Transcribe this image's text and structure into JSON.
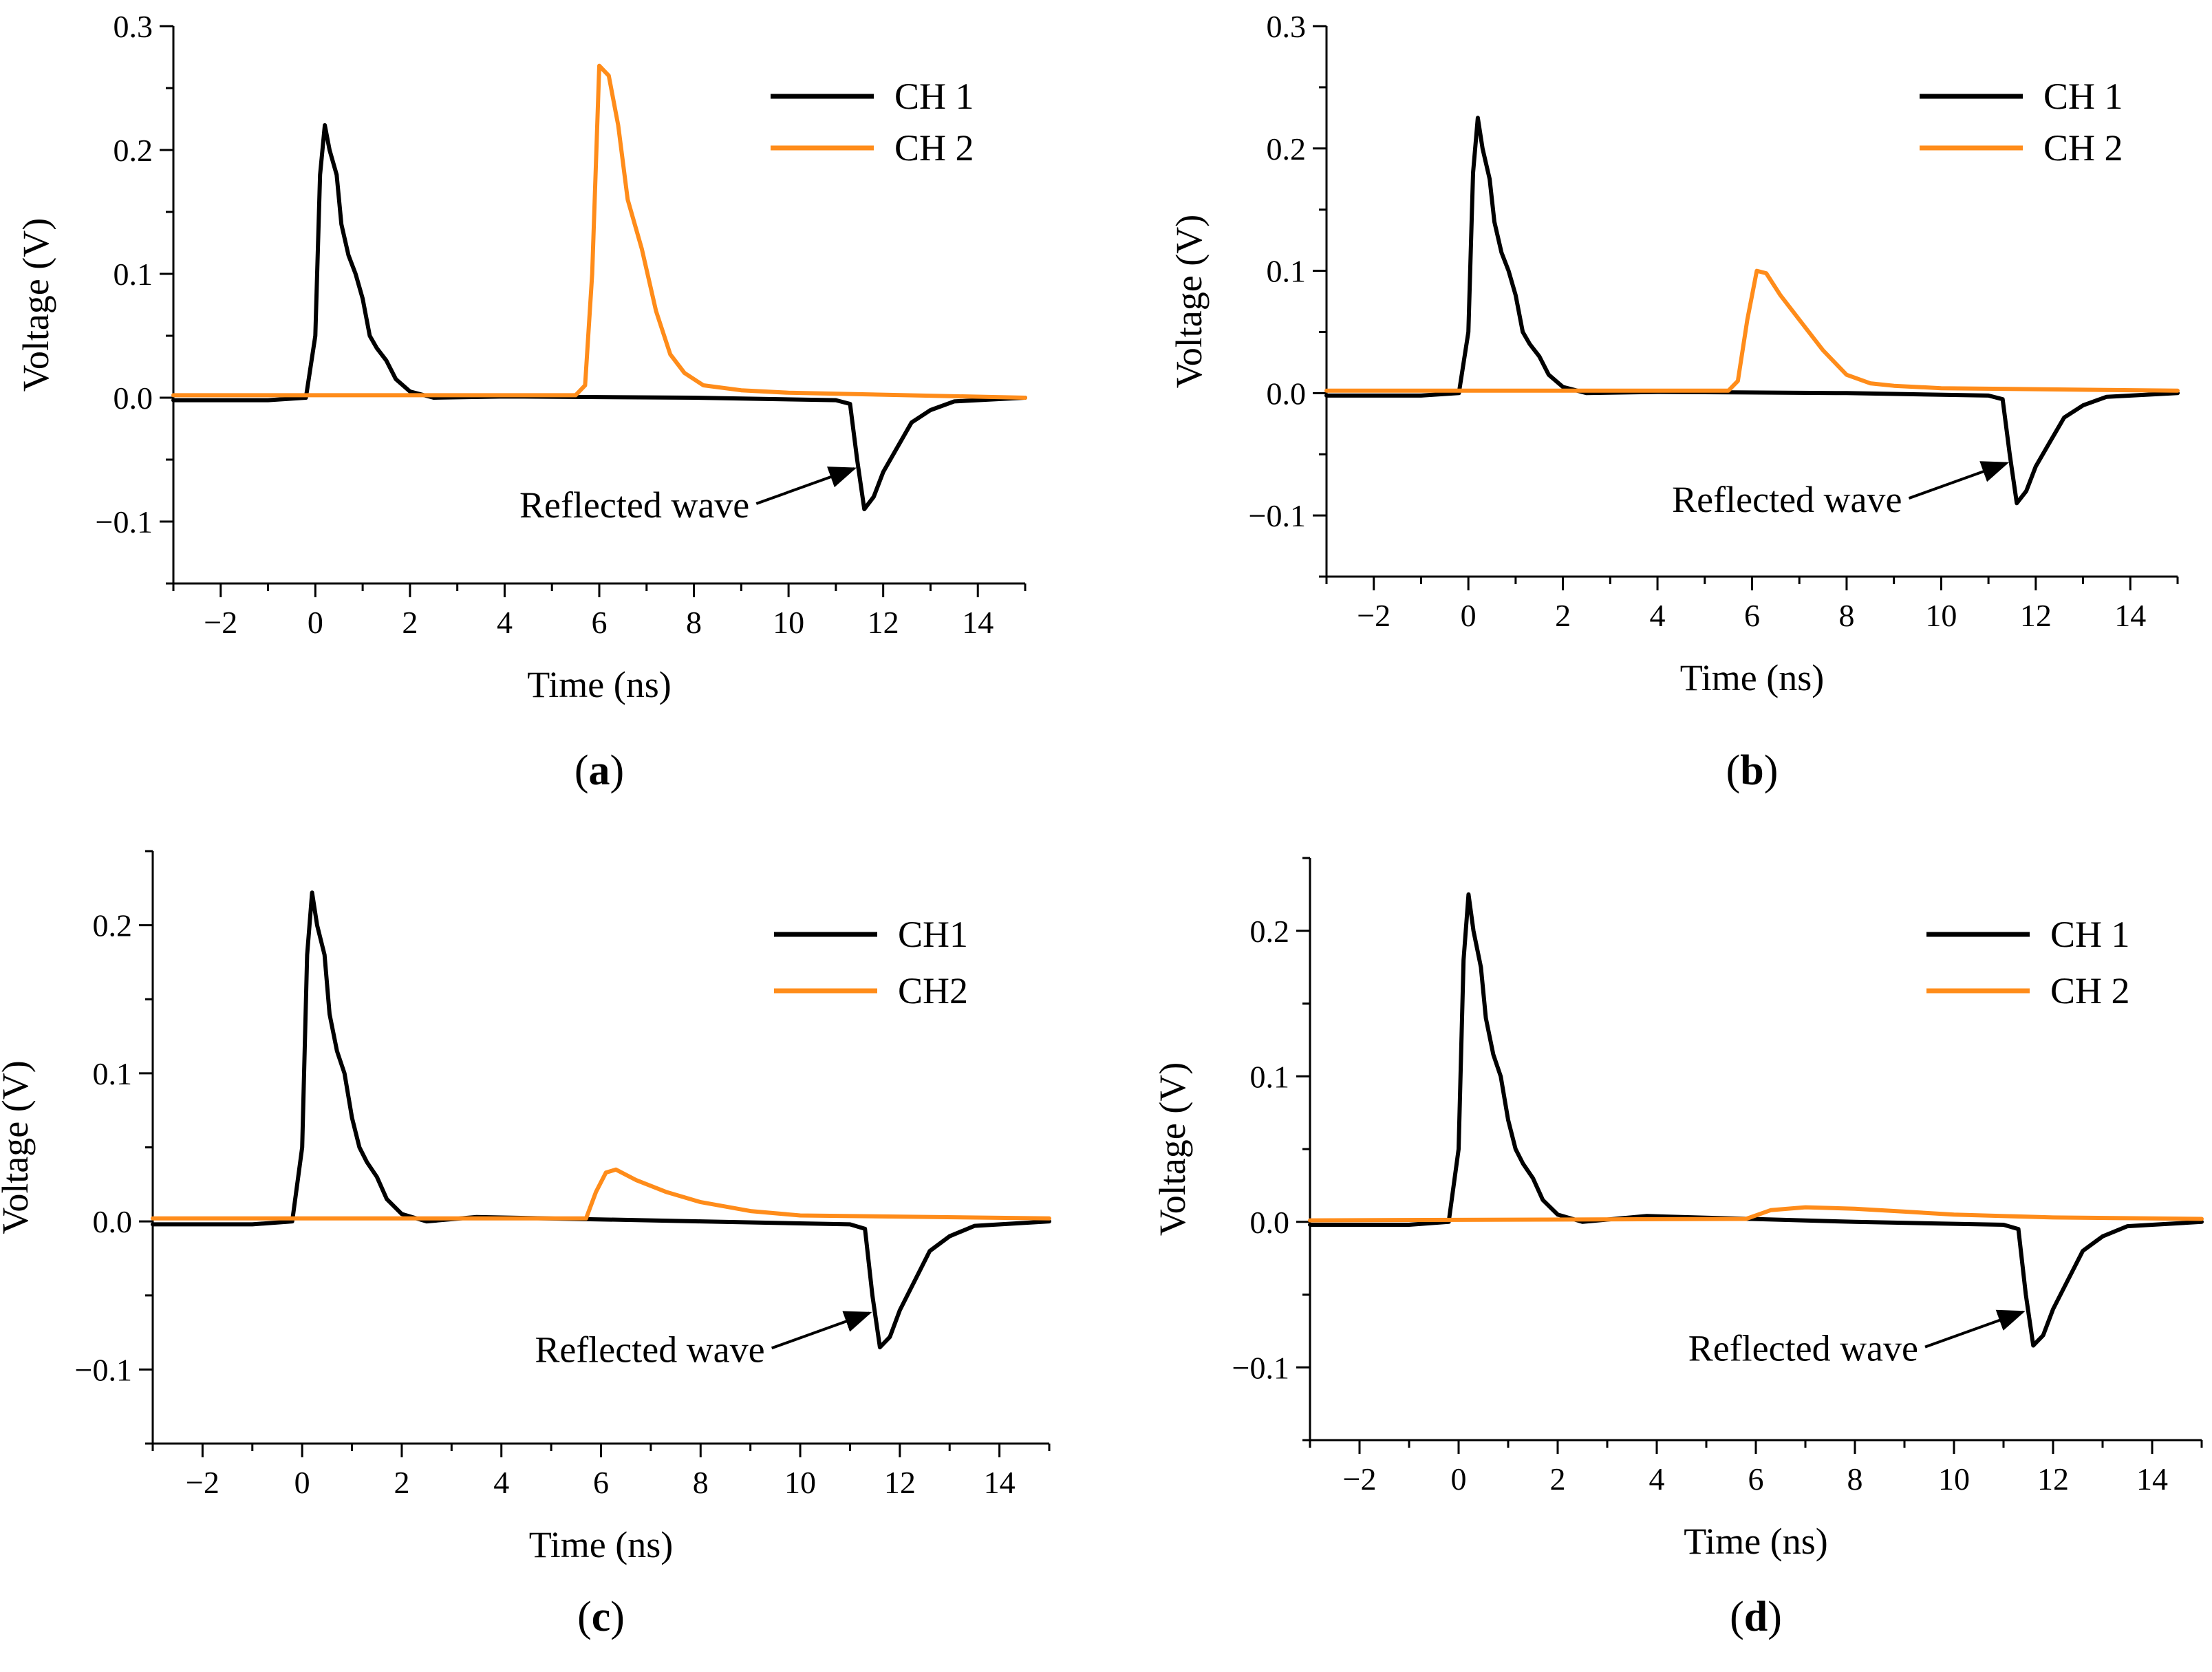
{
  "figure": {
    "description_labels": [
      "a",
      "b",
      "c",
      "d"
    ]
  },
  "colors": {
    "ch1": "#000000",
    "ch2": "#FF8C1A",
    "axis": "#000000"
  },
  "chart_data": [
    {
      "type": "line",
      "panel_label": "a",
      "xlabel": "Time (ns)",
      "ylabel": "Voltage (V)",
      "xlim": [
        -3,
        15
      ],
      "ylim": [
        -0.15,
        0.3
      ],
      "xticks": [
        -2,
        0,
        2,
        4,
        6,
        8,
        10,
        12,
        14
      ],
      "xtick_labels": [
        "−2",
        "0",
        "2",
        "4",
        "6",
        "8",
        "10",
        "12",
        "14"
      ],
      "yticks": [
        -0.1,
        0.0,
        0.1,
        0.2,
        0.3
      ],
      "ytick_labels": [
        "−0.1",
        "0.0",
        "0.1",
        "0.2",
        "0.3"
      ],
      "legend": [
        "CH 1",
        "CH 2"
      ],
      "annotation": {
        "text": "Reflected wave",
        "arrow_to": [
          11.5,
          -0.055
        ]
      },
      "series": [
        {
          "name": "CH 1",
          "color": "#000000",
          "points": [
            [
              -3,
              -0.002
            ],
            [
              -1,
              -0.002
            ],
            [
              -0.2,
              0.0
            ],
            [
              0.0,
              0.05
            ],
            [
              0.1,
              0.18
            ],
            [
              0.2,
              0.22
            ],
            [
              0.3,
              0.2
            ],
            [
              0.45,
              0.18
            ],
            [
              0.55,
              0.14
            ],
            [
              0.7,
              0.115
            ],
            [
              0.85,
              0.1
            ],
            [
              1.0,
              0.08
            ],
            [
              1.15,
              0.05
            ],
            [
              1.3,
              0.04
            ],
            [
              1.5,
              0.03
            ],
            [
              1.7,
              0.015
            ],
            [
              2.0,
              0.005
            ],
            [
              2.5,
              0.0
            ],
            [
              4,
              0.001
            ],
            [
              8,
              0.0
            ],
            [
              11.0,
              -0.002
            ],
            [
              11.3,
              -0.005
            ],
            [
              11.45,
              -0.05
            ],
            [
              11.6,
              -0.09
            ],
            [
              11.8,
              -0.08
            ],
            [
              12.0,
              -0.06
            ],
            [
              12.3,
              -0.04
            ],
            [
              12.6,
              -0.02
            ],
            [
              13.0,
              -0.01
            ],
            [
              13.5,
              -0.003
            ],
            [
              15,
              0.0
            ]
          ]
        },
        {
          "name": "CH 2",
          "color": "#FF8C1A",
          "points": [
            [
              -3,
              0.002
            ],
            [
              5.5,
              0.002
            ],
            [
              5.7,
              0.01
            ],
            [
              5.85,
              0.1
            ],
            [
              6.0,
              0.268
            ],
            [
              6.2,
              0.26
            ],
            [
              6.4,
              0.22
            ],
            [
              6.6,
              0.16
            ],
            [
              6.9,
              0.12
            ],
            [
              7.2,
              0.07
            ],
            [
              7.5,
              0.035
            ],
            [
              7.8,
              0.02
            ],
            [
              8.2,
              0.01
            ],
            [
              9,
              0.006
            ],
            [
              10,
              0.004
            ],
            [
              15,
              0.0
            ]
          ]
        }
      ]
    },
    {
      "type": "line",
      "panel_label": "b",
      "xlabel": "Time (ns)",
      "ylabel": "Voltage  (V)",
      "xlim": [
        -3,
        15
      ],
      "ylim": [
        -0.15,
        0.3
      ],
      "xticks": [
        -2,
        0,
        2,
        4,
        6,
        8,
        10,
        12,
        14
      ],
      "xtick_labels": [
        "−2",
        "0",
        "2",
        "4",
        "6",
        "8",
        "10",
        "12",
        "14"
      ],
      "yticks": [
        -0.1,
        0.0,
        0.1,
        0.2,
        0.3
      ],
      "ytick_labels": [
        "−0.1",
        "0.0",
        "0.1",
        "0.2",
        "0.3"
      ],
      "legend": [
        "CH 1",
        "CH 2"
      ],
      "annotation": {
        "text": "Reflected wave",
        "arrow_to": [
          11.5,
          -0.055
        ]
      },
      "series": [
        {
          "name": "CH 1",
          "color": "#000000",
          "points": [
            [
              -3,
              -0.002
            ],
            [
              -1,
              -0.002
            ],
            [
              -0.2,
              0.0
            ],
            [
              0.0,
              0.05
            ],
            [
              0.1,
              0.18
            ],
            [
              0.2,
              0.225
            ],
            [
              0.3,
              0.2
            ],
            [
              0.45,
              0.175
            ],
            [
              0.55,
              0.14
            ],
            [
              0.7,
              0.115
            ],
            [
              0.85,
              0.1
            ],
            [
              1.0,
              0.08
            ],
            [
              1.15,
              0.05
            ],
            [
              1.3,
              0.04
            ],
            [
              1.5,
              0.03
            ],
            [
              1.7,
              0.015
            ],
            [
              2.0,
              0.005
            ],
            [
              2.5,
              0.0
            ],
            [
              4,
              0.001
            ],
            [
              8,
              0.0
            ],
            [
              11.0,
              -0.002
            ],
            [
              11.3,
              -0.005
            ],
            [
              11.45,
              -0.05
            ],
            [
              11.6,
              -0.09
            ],
            [
              11.8,
              -0.08
            ],
            [
              12.0,
              -0.06
            ],
            [
              12.3,
              -0.04
            ],
            [
              12.6,
              -0.02
            ],
            [
              13.0,
              -0.01
            ],
            [
              13.5,
              -0.003
            ],
            [
              15,
              0.0
            ]
          ]
        },
        {
          "name": "CH 2",
          "color": "#FF8C1A",
          "points": [
            [
              -3,
              0.002
            ],
            [
              5.5,
              0.002
            ],
            [
              5.7,
              0.01
            ],
            [
              5.9,
              0.06
            ],
            [
              6.1,
              0.1
            ],
            [
              6.3,
              0.098
            ],
            [
              6.6,
              0.08
            ],
            [
              7.0,
              0.06
            ],
            [
              7.5,
              0.035
            ],
            [
              8.0,
              0.015
            ],
            [
              8.5,
              0.008
            ],
            [
              9,
              0.006
            ],
            [
              10,
              0.004
            ],
            [
              15,
              0.002
            ]
          ]
        }
      ]
    },
    {
      "type": "line",
      "panel_label": "c",
      "xlabel": "Time (ns)",
      "ylabel": "Voltage (V)",
      "xlim": [
        -3,
        15
      ],
      "ylim": [
        -0.15,
        0.25
      ],
      "xticks": [
        -2,
        0,
        2,
        4,
        6,
        8,
        10,
        12,
        14
      ],
      "xtick_labels": [
        "−2",
        "0",
        "2",
        "4",
        "6",
        "8",
        "10",
        "12",
        "14"
      ],
      "yticks": [
        -0.1,
        0.0,
        0.1,
        0.2
      ],
      "ytick_labels": [
        "−0.1",
        "0.0",
        "0.1",
        "0.2"
      ],
      "legend": [
        "CH1",
        "CH2"
      ],
      "annotation": {
        "text": "Reflected wave",
        "arrow_to": [
          11.5,
          -0.06
        ]
      },
      "series": [
        {
          "name": "CH1",
          "color": "#000000",
          "points": [
            [
              -3,
              -0.002
            ],
            [
              -1,
              -0.002
            ],
            [
              -0.2,
              0.0
            ],
            [
              0.0,
              0.05
            ],
            [
              0.1,
              0.18
            ],
            [
              0.2,
              0.222
            ],
            [
              0.3,
              0.2
            ],
            [
              0.45,
              0.18
            ],
            [
              0.55,
              0.14
            ],
            [
              0.7,
              0.115
            ],
            [
              0.85,
              0.1
            ],
            [
              1.0,
              0.07
            ],
            [
              1.15,
              0.05
            ],
            [
              1.3,
              0.04
            ],
            [
              1.5,
              0.03
            ],
            [
              1.7,
              0.015
            ],
            [
              2.0,
              0.005
            ],
            [
              2.5,
              0.0
            ],
            [
              3.5,
              0.003
            ],
            [
              8,
              0.0
            ],
            [
              11.0,
              -0.002
            ],
            [
              11.3,
              -0.005
            ],
            [
              11.45,
              -0.05
            ],
            [
              11.6,
              -0.085
            ],
            [
              11.8,
              -0.078
            ],
            [
              12.0,
              -0.06
            ],
            [
              12.3,
              -0.04
            ],
            [
              12.6,
              -0.02
            ],
            [
              13.0,
              -0.01
            ],
            [
              13.5,
              -0.003
            ],
            [
              15,
              0.0
            ]
          ]
        },
        {
          "name": "CH2",
          "color": "#FF8C1A",
          "points": [
            [
              -3,
              0.002
            ],
            [
              5.7,
              0.002
            ],
            [
              5.9,
              0.02
            ],
            [
              6.1,
              0.033
            ],
            [
              6.3,
              0.035
            ],
            [
              6.7,
              0.028
            ],
            [
              7.3,
              0.02
            ],
            [
              8.0,
              0.013
            ],
            [
              9,
              0.007
            ],
            [
              10,
              0.004
            ],
            [
              15,
              0.002
            ]
          ]
        }
      ]
    },
    {
      "type": "line",
      "panel_label": "d",
      "xlabel": "Time (ns)",
      "ylabel": "Voltage (V)",
      "xlim": [
        -3,
        15
      ],
      "ylim": [
        -0.15,
        0.25
      ],
      "xticks": [
        -2,
        0,
        2,
        4,
        6,
        8,
        10,
        12,
        14
      ],
      "xtick_labels": [
        "−2",
        "0",
        "2",
        "4",
        "6",
        "8",
        "10",
        "12",
        "14"
      ],
      "yticks": [
        -0.1,
        0.0,
        0.1,
        0.2
      ],
      "ytick_labels": [
        "−0.1",
        "0.0",
        "0.1",
        "0.2"
      ],
      "legend": [
        "CH 1",
        "CH 2"
      ],
      "annotation": {
        "text": "Reflected wave",
        "arrow_to": [
          11.5,
          -0.06
        ]
      },
      "series": [
        {
          "name": "CH 1",
          "color": "#000000",
          "points": [
            [
              -3,
              -0.002
            ],
            [
              -1,
              -0.002
            ],
            [
              -0.2,
              0.0
            ],
            [
              0.0,
              0.05
            ],
            [
              0.1,
              0.18
            ],
            [
              0.2,
              0.225
            ],
            [
              0.3,
              0.2
            ],
            [
              0.45,
              0.175
            ],
            [
              0.55,
              0.14
            ],
            [
              0.7,
              0.115
            ],
            [
              0.85,
              0.1
            ],
            [
              1.0,
              0.07
            ],
            [
              1.15,
              0.05
            ],
            [
              1.3,
              0.04
            ],
            [
              1.5,
              0.03
            ],
            [
              1.7,
              0.015
            ],
            [
              2.0,
              0.005
            ],
            [
              2.5,
              0.0
            ],
            [
              3.8,
              0.004
            ],
            [
              8,
              0.0
            ],
            [
              11.0,
              -0.002
            ],
            [
              11.3,
              -0.005
            ],
            [
              11.45,
              -0.05
            ],
            [
              11.6,
              -0.085
            ],
            [
              11.8,
              -0.078
            ],
            [
              12.0,
              -0.06
            ],
            [
              12.3,
              -0.04
            ],
            [
              12.6,
              -0.02
            ],
            [
              13.0,
              -0.01
            ],
            [
              13.5,
              -0.003
            ],
            [
              15,
              0.0
            ]
          ]
        },
        {
          "name": "CH 2",
          "color": "#FF8C1A",
          "points": [
            [
              -3,
              0.001
            ],
            [
              5.8,
              0.002
            ],
            [
              6.3,
              0.008
            ],
            [
              7.0,
              0.01
            ],
            [
              8.0,
              0.009
            ],
            [
              9,
              0.007
            ],
            [
              10,
              0.005
            ],
            [
              12,
              0.003
            ],
            [
              15,
              0.002
            ]
          ]
        }
      ]
    }
  ]
}
